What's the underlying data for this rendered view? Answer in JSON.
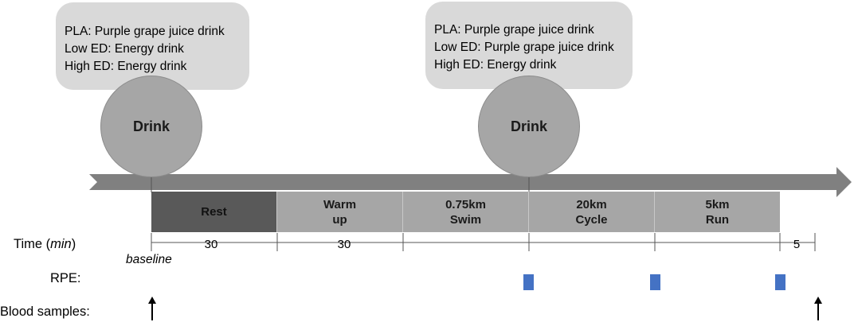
{
  "colors": {
    "callout_bg": "#d9d9d9",
    "drink_circle": "#a6a6a6",
    "timeline_arrow": "#808080",
    "rest_block": "#595959",
    "exercise_block": "#a6a6a6",
    "rpe_marker": "#4472c4"
  },
  "callouts": [
    {
      "lines": [
        "PLA: Purple grape juice drink",
        "Low ED: Energy drink",
        "High ED: Energy drink"
      ]
    },
    {
      "lines": [
        "PLA: Purple grape juice drink",
        "Low ED: Purple grape juice drink",
        "High ED: Energy drink"
      ]
    }
  ],
  "drinks": [
    {
      "label": "Drink"
    },
    {
      "label": "Drink"
    }
  ],
  "phases": [
    {
      "label": "Rest"
    },
    {
      "label": "Warm\nup"
    },
    {
      "label": "0.75km\nSwim"
    },
    {
      "label": "20km\nCycle"
    },
    {
      "label": "5km\nRun"
    }
  ],
  "timeline": {
    "time_label_prefix": "Time (",
    "time_label_unit": "min",
    "time_label_suffix": ")",
    "durations": [
      "30",
      "30",
      "5"
    ],
    "baseline_label": "baseline"
  },
  "rows": {
    "rpe_label": "RPE:",
    "blood_label": "Blood samples:"
  },
  "icons": {
    "timeline": "right-arrow-icon",
    "blood_sample": "up-arrow-icon",
    "rpe": "square-marker-icon"
  }
}
